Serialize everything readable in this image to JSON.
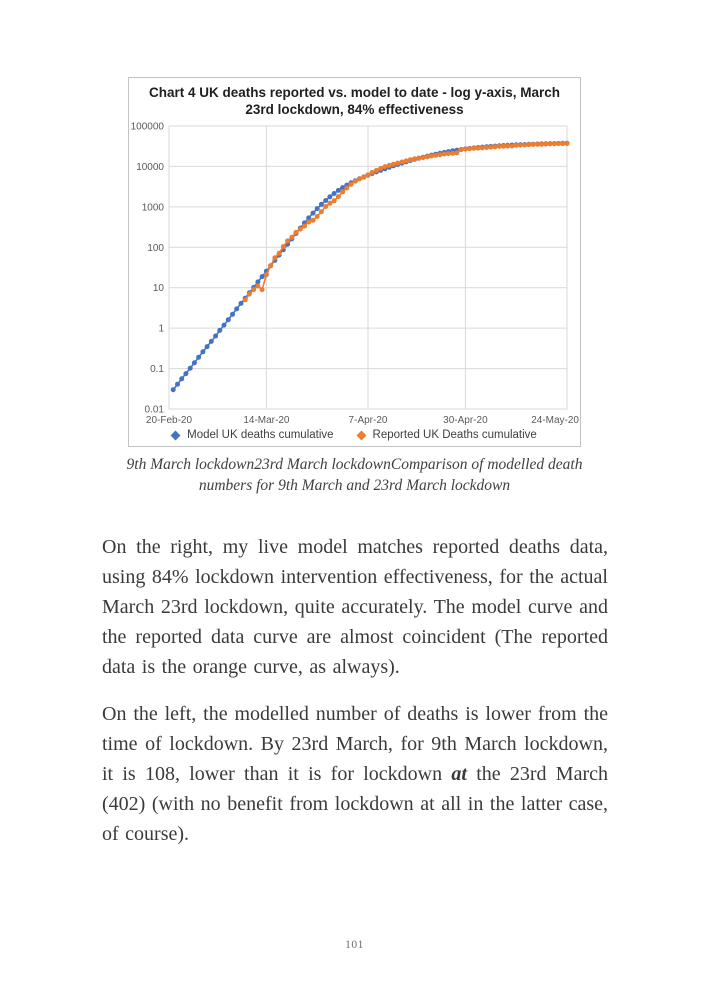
{
  "chart": {
    "title_lines": [
      "Chart 4 UK deaths reported vs. model to date - log y-axis, March",
      "23rd lockdown, 84% effectiveness"
    ]
  },
  "chart_data": {
    "type": "line",
    "title": "Chart 4 UK deaths reported vs. model to date - log y-axis, March 23rd lockdown, 84% effectiveness",
    "xlabel": "",
    "ylabel": "",
    "grid": true,
    "legend_position": "bottom",
    "x_axis": {
      "unit": "date",
      "tick_labels": [
        "20-Feb-20",
        "14-Mar-20",
        "7-Apr-20",
        "30-Apr-20",
        "24-May-20"
      ],
      "tick_days": [
        0,
        23,
        47,
        70,
        94
      ],
      "range_days": [
        0,
        94
      ]
    },
    "y_axis": {
      "scale": "log",
      "ticks": [
        100000,
        10000,
        1000,
        100,
        10,
        1,
        0.1,
        0.01
      ],
      "range": [
        0.01,
        100000
      ]
    },
    "series": [
      {
        "name": "Model UK deaths cumulative",
        "color": "#4472C4",
        "marker": "circle",
        "points": [
          [
            1,
            0.03
          ],
          [
            2,
            0.041
          ],
          [
            3,
            0.056
          ],
          [
            4,
            0.075
          ],
          [
            5,
            0.102
          ],
          [
            6,
            0.139
          ],
          [
            7,
            0.19
          ],
          [
            8,
            0.26
          ],
          [
            9,
            0.35
          ],
          [
            10,
            0.47
          ],
          [
            11,
            0.64
          ],
          [
            12,
            0.88
          ],
          [
            13,
            1.19
          ],
          [
            14,
            1.62
          ],
          [
            15,
            2.2
          ],
          [
            16,
            3.0
          ],
          [
            17,
            4.1
          ],
          [
            18,
            5.5
          ],
          [
            19,
            7.5
          ],
          [
            20,
            10.2
          ],
          [
            21,
            13.9
          ],
          [
            22,
            18.8
          ],
          [
            23,
            25.6
          ],
          [
            24,
            34.8
          ],
          [
            25,
            47.3
          ],
          [
            26,
            64.2
          ],
          [
            27,
            87.3
          ],
          [
            28,
            119
          ],
          [
            29,
            161
          ],
          [
            30,
            219
          ],
          [
            31,
            298
          ],
          [
            32,
            402
          ],
          [
            33,
            534
          ],
          [
            34,
            700
          ],
          [
            35,
            905
          ],
          [
            36,
            1150
          ],
          [
            37,
            1440
          ],
          [
            38,
            1770
          ],
          [
            39,
            2140
          ],
          [
            40,
            2550
          ],
          [
            41,
            2990
          ],
          [
            42,
            3450
          ],
          [
            43,
            3940
          ],
          [
            44,
            4440
          ],
          [
            45,
            4970
          ],
          [
            46,
            5510
          ],
          [
            47,
            6060
          ],
          [
            48,
            6670
          ],
          [
            49,
            7320
          ],
          [
            50,
            8010
          ],
          [
            51,
            8740
          ],
          [
            52,
            9510
          ],
          [
            53,
            10320
          ],
          [
            54,
            11170
          ],
          [
            55,
            12050
          ],
          [
            56,
            12970
          ],
          [
            57,
            13920
          ],
          [
            58,
            14890
          ],
          [
            59,
            15900
          ],
          [
            60,
            16930
          ],
          [
            61,
            17980
          ],
          [
            62,
            19040
          ],
          [
            63,
            20110
          ],
          [
            64,
            21180
          ],
          [
            65,
            22240
          ],
          [
            66,
            23280
          ],
          [
            67,
            24310
          ],
          [
            68,
            25310
          ],
          [
            69,
            26270
          ],
          [
            70,
            27190
          ],
          [
            71,
            27980
          ],
          [
            72,
            28730
          ],
          [
            73,
            29450
          ],
          [
            74,
            30130
          ],
          [
            75,
            30760
          ],
          [
            76,
            31350
          ],
          [
            77,
            31910
          ],
          [
            78,
            32420
          ],
          [
            79,
            32910
          ],
          [
            80,
            33370
          ],
          [
            81,
            33800
          ],
          [
            82,
            34210
          ],
          [
            83,
            34590
          ],
          [
            84,
            34930
          ],
          [
            85,
            35240
          ],
          [
            86,
            35560
          ],
          [
            87,
            35840
          ],
          [
            88,
            36130
          ],
          [
            89,
            36380
          ],
          [
            90,
            36630
          ],
          [
            91,
            36850
          ],
          [
            92,
            37070
          ],
          [
            93,
            37260
          ],
          [
            94,
            37450
          ]
        ]
      },
      {
        "name": "Reported UK Deaths cumulative",
        "color": "#ED7D31",
        "marker": "circle",
        "points": [
          [
            18,
            5
          ],
          [
            19,
            7
          ],
          [
            20,
            9
          ],
          [
            21,
            11
          ],
          [
            22,
            9
          ],
          [
            23,
            21
          ],
          [
            24,
            35
          ],
          [
            25,
            55
          ],
          [
            26,
            71
          ],
          [
            27,
            104
          ],
          [
            28,
            144
          ],
          [
            29,
            177
          ],
          [
            30,
            233
          ],
          [
            31,
            281
          ],
          [
            32,
            335
          ],
          [
            33,
            422
          ],
          [
            34,
            465
          ],
          [
            35,
            578
          ],
          [
            36,
            759
          ],
          [
            37,
            1019
          ],
          [
            38,
            1228
          ],
          [
            39,
            1408
          ],
          [
            40,
            1789
          ],
          [
            41,
            2352
          ],
          [
            42,
            2921
          ],
          [
            43,
            3605
          ],
          [
            44,
            4313
          ],
          [
            45,
            4934
          ],
          [
            46,
            5373
          ],
          [
            47,
            6159
          ],
          [
            48,
            7097
          ],
          [
            49,
            7978
          ],
          [
            50,
            8958
          ],
          [
            51,
            9875
          ],
          [
            52,
            10612
          ],
          [
            53,
            11329
          ],
          [
            54,
            12107
          ],
          [
            55,
            12868
          ],
          [
            56,
            13729
          ],
          [
            57,
            14576
          ],
          [
            58,
            15464
          ],
          [
            59,
            16060
          ],
          [
            60,
            16509
          ],
          [
            61,
            17337
          ],
          [
            62,
            18100
          ],
          [
            63,
            18738
          ],
          [
            64,
            19506
          ],
          [
            65,
            20319
          ],
          [
            66,
            20732
          ],
          [
            67,
            21092
          ],
          [
            68,
            21678
          ],
          [
            69,
            26097
          ],
          [
            70,
            26771
          ],
          [
            71,
            27510
          ],
          [
            72,
            28131
          ],
          [
            73,
            28446
          ],
          [
            74,
            28734
          ],
          [
            75,
            29427
          ],
          [
            76,
            30076
          ],
          [
            77,
            30615
          ],
          [
            78,
            31241
          ],
          [
            79,
            31587
          ],
          [
            80,
            31855
          ],
          [
            81,
            32065
          ],
          [
            82,
            33186
          ],
          [
            83,
            33614
          ],
          [
            84,
            33998
          ],
          [
            85,
            34466
          ],
          [
            86,
            34796
          ],
          [
            87,
            35044
          ],
          [
            88,
            35341
          ],
          [
            89,
            35704
          ],
          [
            90,
            36042
          ],
          [
            91,
            36393
          ],
          [
            92,
            36675
          ],
          [
            93,
            36793
          ],
          [
            94,
            36914
          ]
        ]
      }
    ]
  },
  "document": {
    "caption_lines": [
      "9th March lockdown23rd March lockdownComparison of modelled death",
      "numbers for 9th March and 23rd March lockdown"
    ],
    "paragraphs": [
      {
        "segments": [
          {
            "text": "On the right, my live model matches reported deaths data, using 84% lockdown intervention effectiveness, for the actual March 23rd lockdown, quite accurately. The model curve and the reported data curve are almost coincident (The reported data is the orange curve, as always)."
          }
        ]
      },
      {
        "segments": [
          {
            "text": "On the left, the modelled number of deaths is lower from the time of lockdown. By 23rd March, for 9th March lockdown, it is 108, lower than it is for lockdown "
          },
          {
            "text": "at",
            "bold_italic": true
          },
          {
            "text": " the 23rd March (402) (with no benefit from lockdown at all in the latter case, of course)."
          }
        ]
      }
    ],
    "page_number": "101"
  }
}
